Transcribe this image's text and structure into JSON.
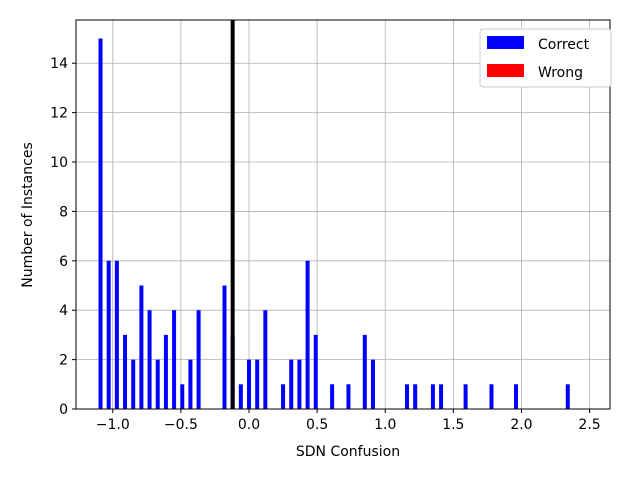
{
  "chart_data": {
    "type": "bar",
    "title": "",
    "xlabel": "SDN Confusion",
    "ylabel": "Number of Instances",
    "xlim": [
      -1.27,
      2.65
    ],
    "ylim": [
      0,
      15.75
    ],
    "xticks": [
      -1.0,
      -0.5,
      0.0,
      0.5,
      1.0,
      1.5,
      2.0,
      2.5
    ],
    "xtick_labels": [
      "−1.0",
      "−0.5",
      "0.0",
      "0.5",
      "1.0",
      "1.5",
      "2.0",
      "2.5"
    ],
    "yticks": [
      0,
      2,
      4,
      6,
      8,
      10,
      12,
      14
    ],
    "ytick_labels": [
      "0",
      "2",
      "4",
      "6",
      "8",
      "10",
      "12",
      "14"
    ],
    "grid": true,
    "legend_position": "top-right",
    "threshold_line": -0.12,
    "series": [
      {
        "name": "Correct",
        "color": "#0000ff",
        "x": [
          -1.09,
          -1.03,
          -0.97,
          -0.91,
          -0.85,
          -0.79,
          -0.73,
          -0.67,
          -0.61,
          -0.55,
          -0.49,
          -0.43,
          -0.37,
          -0.18,
          -0.12,
          -0.06,
          0.0,
          0.06,
          0.12,
          0.25,
          0.31,
          0.37,
          0.43,
          0.49,
          0.61,
          0.73,
          0.85,
          0.91,
          1.16,
          1.22,
          1.35,
          1.41,
          1.59,
          1.78,
          1.96,
          2.34
        ],
        "values": [
          15,
          6,
          6,
          3,
          2,
          5,
          4,
          2,
          3,
          4,
          1,
          2,
          4,
          5,
          3,
          1,
          2,
          2,
          4,
          1,
          2,
          2,
          6,
          3,
          1,
          1,
          3,
          2,
          1,
          1,
          1,
          1,
          1,
          1,
          1,
          1
        ]
      },
      {
        "name": "Wrong",
        "color": "#ff0000",
        "x": [],
        "values": []
      }
    ]
  }
}
